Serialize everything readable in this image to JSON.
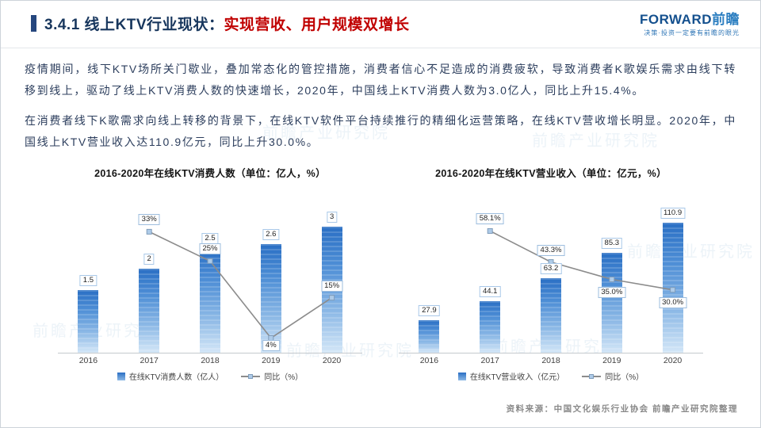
{
  "header": {
    "title_dark": "3.4.1 线上KTV行业现状：",
    "title_highlight": "实现营收、用户规模双增长",
    "logo_en": "FORWARD",
    "logo_cn": "前瞻",
    "logo_tagline": "决策·投资一定要有前瞻的眼光"
  },
  "body": {
    "paragraph1": "疫情期间，线下KTV场所关门歇业，叠加常态化的管控措施，消费者信心不足造成的消费疲软，导致消费者K歌娱乐需求由线下转移到线上，驱动了线上KTV消费人数的快速增长，2020年，中国线上KTV消费人数为3.0亿人，同比上升15.4%。",
    "paragraph2": "在消费者线下K歌需求向线上转移的背景下，在线KTV软件平台持续推行的精细化运营策略，在线KTV营收增长明显。2020年，中国线上KTV营业收入达110.9亿元，同比上升30.0%。"
  },
  "chart_data": [
    {
      "type": "bar+line",
      "title": "2016-2020年在线KTV消费人数（单位：亿人，%）",
      "categories": [
        "2016",
        "2017",
        "2018",
        "2019",
        "2020"
      ],
      "series": [
        {
          "name": "在线KTV消费人数（亿人）",
          "type": "bar",
          "values": [
            1.5,
            2,
            2.5,
            2.6,
            3
          ],
          "labels": [
            "1.5",
            "2",
            "2.5",
            "2.6",
            "3"
          ],
          "ylim": [
            0,
            3.5
          ]
        },
        {
          "name": "同比（%）",
          "type": "line",
          "values": [
            null,
            33,
            25,
            4,
            15
          ],
          "labels": [
            "",
            "33%",
            "25%",
            "4%",
            "15%"
          ],
          "label_pos": [
            "",
            "above",
            "above",
            "below",
            "above"
          ],
          "ylim": [
            0,
            40
          ]
        }
      ],
      "legend_position": "bottom",
      "grid": false
    },
    {
      "type": "bar+line",
      "title": "2016-2020年在线KTV营业收入（单位：亿元，%）",
      "categories": [
        "2016",
        "2017",
        "2018",
        "2019",
        "2020"
      ],
      "series": [
        {
          "name": "在线KTV营业收入（亿元）",
          "type": "bar",
          "values": [
            27.9,
            44.1,
            63.2,
            85.3,
            110.9
          ],
          "labels": [
            "27.9",
            "44.1",
            "63.2",
            "85.3",
            "110.9"
          ],
          "ylim": [
            0,
            125
          ]
        },
        {
          "name": "同比（%）",
          "type": "line",
          "values": [
            null,
            58.1,
            43.3,
            35.0,
            30.0
          ],
          "labels": [
            "",
            "58.1%",
            "43.3%",
            "35.0%",
            "30.0%"
          ],
          "label_pos": [
            "",
            "above",
            "above",
            "below",
            "below"
          ],
          "ylim": [
            0,
            70
          ]
        }
      ],
      "legend_position": "bottom",
      "grid": false
    }
  ],
  "footer": {
    "source": "资料来源：中国文化娱乐行业协会 前瞻产业研究院整理"
  },
  "colors": {
    "title_dark": "#17365d",
    "title_highlight": "#c00000",
    "bar_top": "#2a6fc4",
    "bar_bottom": "#d3e6f7",
    "line": "#8c8c8c",
    "logo_blue": "#14508e"
  },
  "watermark": "前瞻产业研究院"
}
